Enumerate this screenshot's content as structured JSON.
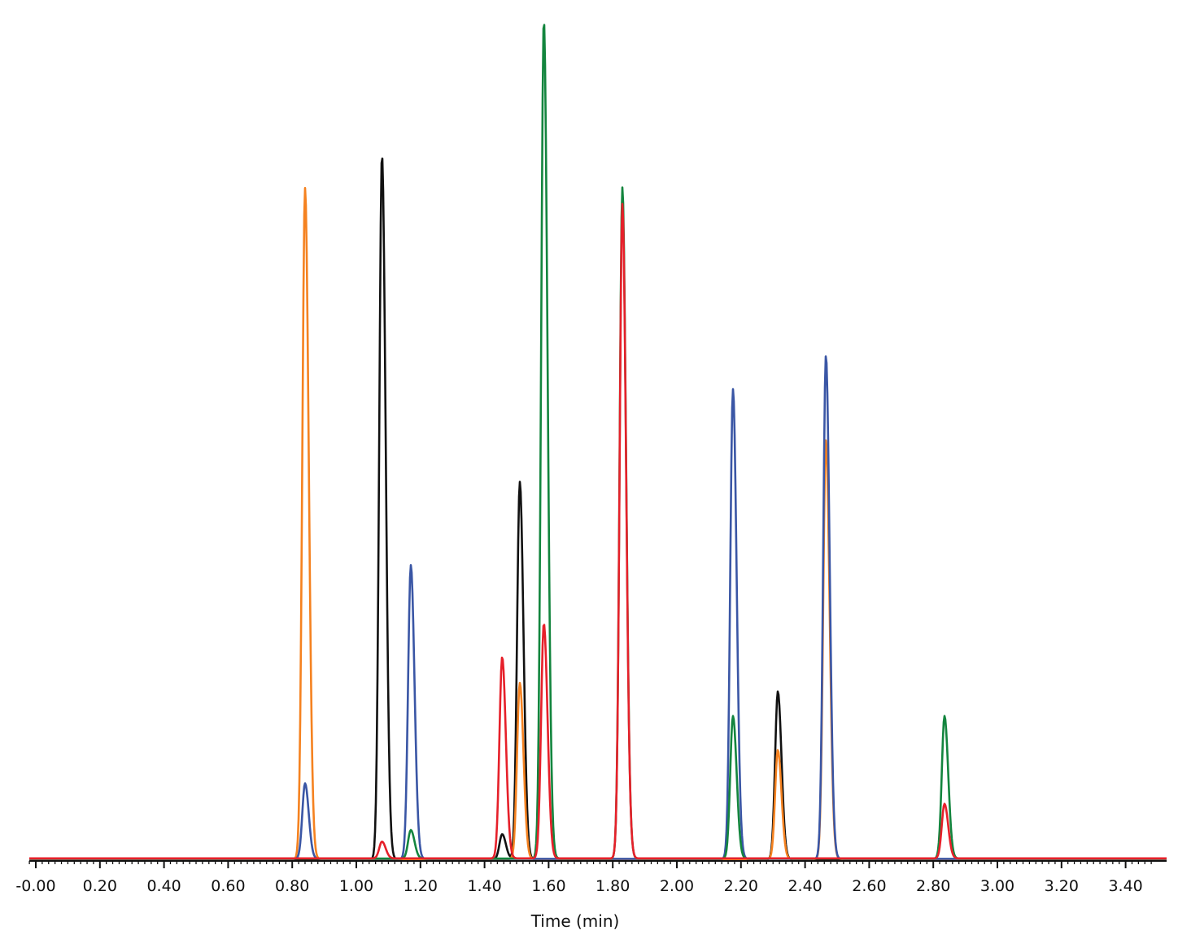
{
  "chart_data": {
    "type": "line",
    "title": "",
    "xlabel": "Time (min)",
    "ylabel": "",
    "xlim": [
      -0.02,
      3.5
    ],
    "ylim": [
      0,
      100
    ],
    "grid": false,
    "legend": "none",
    "x_ticks": [
      "-0.00",
      "0.20",
      "0.40",
      "0.60",
      "0.80",
      "1.00",
      "1.20",
      "1.40",
      "1.60",
      "1.80",
      "2.00",
      "2.20",
      "2.40",
      "2.60",
      "2.80",
      "3.00",
      "3.20",
      "3.40"
    ],
    "x_tick_values": [
      0,
      0.2,
      0.4,
      0.6,
      0.8,
      1.0,
      1.2,
      1.4,
      1.6,
      1.8,
      2.0,
      2.2,
      2.4,
      2.6,
      2.8,
      3.0,
      3.2,
      3.4
    ],
    "series": [
      {
        "color": "#111111",
        "peaks": [
          [
            1.08,
            84
          ],
          [
            1.455,
            3
          ],
          [
            1.51,
            45
          ],
          [
            2.315,
            20
          ]
        ]
      },
      {
        "color": "#f58220",
        "peaks": [
          [
            0.84,
            80
          ],
          [
            1.51,
            21
          ],
          [
            2.315,
            13
          ],
          [
            2.465,
            50
          ]
        ]
      },
      {
        "color": "#3a56a5",
        "peaks": [
          [
            0.84,
            9
          ],
          [
            1.17,
            35
          ],
          [
            2.175,
            56
          ],
          [
            2.465,
            60
          ]
        ]
      },
      {
        "color": "#13853e",
        "peaks": [
          [
            1.17,
            3.4
          ],
          [
            1.585,
            100
          ],
          [
            1.83,
            80
          ],
          [
            2.175,
            17
          ],
          [
            2.835,
            17
          ]
        ]
      },
      {
        "color": "#e6202a",
        "peaks": [
          [
            1.08,
            2
          ],
          [
            1.455,
            24
          ],
          [
            1.585,
            28
          ],
          [
            1.83,
            78
          ],
          [
            2.835,
            6.5
          ]
        ]
      }
    ]
  }
}
